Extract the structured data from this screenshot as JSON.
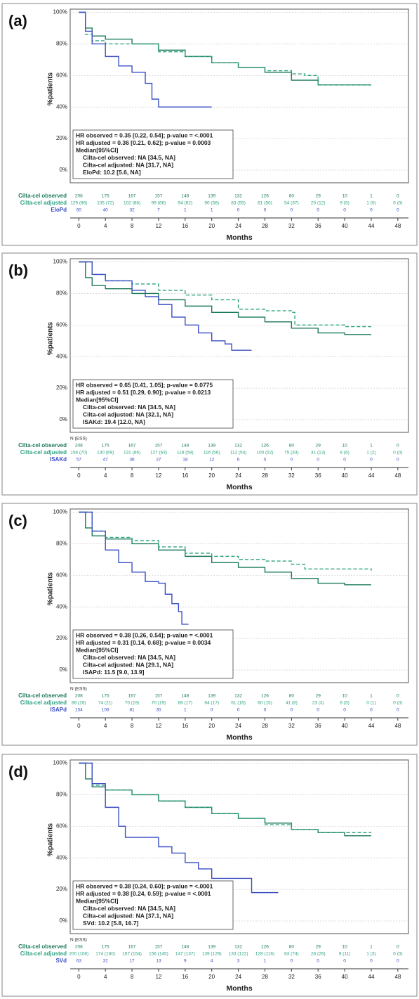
{
  "chart_data": [
    {
      "type": "line",
      "step": true,
      "grid": true,
      "panel_label": "(a)",
      "y_label": "%patients",
      "x_label": "Months",
      "xlim": [
        -1.3,
        49.6
      ],
      "ylim": [
        -8,
        102
      ],
      "xticks": [
        0,
        4,
        8,
        12,
        16,
        20,
        24,
        28,
        32,
        36,
        40,
        44,
        48
      ],
      "yticks": [
        {
          "value": 0,
          "label": "0%"
        },
        {
          "value": 20,
          "label": "20%"
        },
        {
          "value": 40,
          "label": "40%"
        },
        {
          "value": 60,
          "label": "60%"
        },
        {
          "value": 80,
          "label": "80%"
        },
        {
          "value": 100,
          "label": "100%"
        }
      ],
      "series": [
        {
          "name": "Cilta-cel observed",
          "color": "#1d7a5c",
          "dash": false,
          "x": [
            0,
            1,
            2,
            4,
            8,
            12,
            16,
            20,
            24,
            28,
            32,
            36,
            40,
            44
          ],
          "values": [
            100,
            90,
            85,
            83,
            80,
            76,
            72,
            68,
            65,
            62,
            57,
            54,
            54,
            54
          ],
          "at_risk": [
            "208",
            "175",
            "167",
            "157",
            "148",
            "139",
            "132",
            "126",
            "80",
            "29",
            "10",
            "1",
            "0"
          ]
        },
        {
          "name": "Cilta-cel adjusted",
          "color": "#2ea383",
          "dash": true,
          "x": [
            0,
            1,
            2,
            4,
            8,
            12,
            16,
            20,
            24,
            28,
            32,
            34,
            36,
            44
          ],
          "values": [
            100,
            86,
            82,
            80,
            80,
            75,
            72,
            68,
            65,
            63,
            61,
            60,
            54,
            54
          ],
          "at_risk": [
            "129 (86)",
            "105 (72)",
            "102 (68)",
            "99 (66)",
            "94 (62)",
            "90 (58)",
            "83 (55)",
            "81 (50)",
            "54 (37)",
            "20 (12)",
            "9 (5)",
            "1 (0)",
            "0 (0)"
          ]
        },
        {
          "name": "EloPd",
          "color": "#3b4fc4",
          "dash": false,
          "x": [
            0,
            1,
            2,
            4,
            6,
            8,
            10,
            11,
            12,
            20
          ],
          "values": [
            100,
            88,
            80,
            72,
            66,
            62,
            55,
            45,
            40,
            40
          ],
          "at_risk": [
            "60",
            "40",
            "32",
            "7",
            "1",
            "1",
            "0",
            "0",
            "0",
            "0",
            "0",
            "0",
            "0"
          ]
        }
      ],
      "annotations": [
        "HR observed = 0.35 [0.22, 0.54]; p-value = <.0001",
        "HR adjusted = 0.36 [0.21, 0.62]; p-value = 0.0003",
        "Median[95%CI]",
        "Cilta-cel observed: NA [34.5, NA]",
        "Cilta-cel adjusted: NA [31.7, NA]",
        "EloPd: 10.2 [5.6, NA]"
      ]
    },
    {
      "type": "line",
      "step": true,
      "grid": true,
      "panel_label": "(b)",
      "y_label": "%patients",
      "x_label": "Months",
      "risk_header": "N (ESS)",
      "xlim": [
        -1.3,
        49.6
      ],
      "ylim": [
        -8,
        102
      ],
      "xticks": [
        0,
        4,
        8,
        12,
        16,
        20,
        24,
        28,
        32,
        36,
        40,
        44,
        48
      ],
      "yticks": [
        {
          "value": 0,
          "label": "0%"
        },
        {
          "value": 20,
          "label": "20%"
        },
        {
          "value": 40,
          "label": "40%"
        },
        {
          "value": 60,
          "label": "60%"
        },
        {
          "value": 80,
          "label": "80%"
        },
        {
          "value": 100,
          "label": "100%"
        }
      ],
      "series": [
        {
          "name": "Cilta-cel observed",
          "color": "#1d7a5c",
          "dash": false,
          "x": [
            0,
            1,
            2,
            4,
            8,
            12,
            16,
            20,
            24,
            28,
            32,
            36,
            40,
            44
          ],
          "values": [
            100,
            90,
            85,
            83,
            80,
            76,
            72,
            68,
            65,
            62,
            58,
            55,
            54,
            54
          ],
          "at_risk": [
            "208",
            "175",
            "167",
            "157",
            "148",
            "139",
            "132",
            "126",
            "80",
            "29",
            "10",
            "1",
            "0"
          ]
        },
        {
          "name": "Cilta-cel adjusted",
          "color": "#2ea383",
          "dash": true,
          "x": [
            0,
            2,
            4,
            8,
            12,
            16,
            20,
            24,
            28,
            32,
            32.5,
            36,
            40,
            44
          ],
          "values": [
            100,
            92,
            88,
            86,
            82,
            79,
            76,
            70,
            69,
            68,
            60,
            60,
            59,
            59
          ],
          "at_risk": [
            "158 (70)",
            "130 (69)",
            "131 (66)",
            "127 (63)",
            "118 (59)",
            "116 (56)",
            "112 (54)",
            "100 (52)",
            "75 (33)",
            "31 (13)",
            "8 (6)",
            "1 (2)",
            "0 (0)"
          ]
        },
        {
          "name": "ISAKd",
          "color": "#3b4fc4",
          "dash": false,
          "x": [
            0,
            2,
            4,
            8,
            10,
            12,
            14,
            16,
            18,
            20,
            22,
            23,
            26
          ],
          "values": [
            100,
            92,
            88,
            82,
            78,
            73,
            65,
            60,
            55,
            50,
            48,
            44,
            44
          ],
          "at_risk": [
            "57",
            "47",
            "36",
            "27",
            "18",
            "12",
            "6",
            "0",
            "0",
            "0",
            "0",
            "0",
            "0"
          ]
        }
      ],
      "annotations": [
        "HR observed = 0.65 [0.41, 1.05]; p-value = 0.0775",
        "HR adjusted = 0.51 [0.29, 0.90]; p-value = 0.0213",
        "Median[95%CI]",
        "Cilta-cel observed: NA [34.5, NA]",
        "Cilta-cel adjusted: NA [32.1, NA]",
        "ISAKd: 19.4 [12.0, NA]"
      ]
    },
    {
      "type": "line",
      "step": true,
      "grid": true,
      "panel_label": "(c)",
      "y_label": "%patients",
      "x_label": "Months",
      "risk_header": "N (ESS)",
      "xlim": [
        -1.3,
        49.6
      ],
      "ylim": [
        -8,
        102
      ],
      "xticks": [
        0,
        4,
        8,
        12,
        16,
        20,
        24,
        28,
        32,
        36,
        40,
        44,
        48
      ],
      "yticks": [
        {
          "value": 0,
          "label": "0%"
        },
        {
          "value": 20,
          "label": "20%"
        },
        {
          "value": 40,
          "label": "40%"
        },
        {
          "value": 60,
          "label": "60%"
        },
        {
          "value": 80,
          "label": "80%"
        },
        {
          "value": 100,
          "label": "100%"
        }
      ],
      "series": [
        {
          "name": "Cilta-cel observed",
          "color": "#1d7a5c",
          "dash": false,
          "x": [
            0,
            1,
            2,
            4,
            8,
            12,
            16,
            20,
            24,
            28,
            32,
            36,
            40,
            44
          ],
          "values": [
            100,
            90,
            85,
            83,
            80,
            76,
            72,
            68,
            65,
            62,
            58,
            55,
            54,
            54
          ],
          "at_risk": [
            "208",
            "175",
            "167",
            "157",
            "148",
            "139",
            "132",
            "126",
            "80",
            "29",
            "10",
            "1",
            "0"
          ]
        },
        {
          "name": "Cilta-cel adjusted",
          "color": "#2ea383",
          "dash": true,
          "x": [
            0,
            2,
            4,
            8,
            12,
            16,
            20,
            24,
            28,
            32,
            34,
            40,
            44
          ],
          "values": [
            100,
            88,
            84,
            82,
            78,
            74,
            72,
            70,
            69,
            67,
            64,
            64,
            63
          ],
          "at_risk": [
            "88 (26)",
            "74 (21)",
            "70 (19)",
            "70 (19)",
            "66 (17)",
            "64 (17)",
            "61 (16)",
            "60 (15)",
            "41 (8)",
            "23 (3)",
            "6 (5)",
            "0 (1)",
            "0 (0)"
          ]
        },
        {
          "name": "ISAPd",
          "color": "#3b4fc4",
          "dash": false,
          "x": [
            0,
            2,
            4,
            6,
            8,
            10,
            12,
            13,
            14,
            15,
            15.5,
            16.5
          ],
          "values": [
            100,
            88,
            76,
            68,
            62,
            56,
            55,
            48,
            42,
            37,
            29,
            29
          ],
          "at_risk": [
            "154",
            "106",
            "81",
            "30",
            "1",
            "0",
            "0",
            "0",
            "0",
            "0",
            "0",
            "0",
            "0"
          ]
        }
      ],
      "annotations": [
        "HR observed = 0.38 [0.26, 0.54]; p-value = <.0001",
        "HR adjusted = 0.31 [0.14, 0.68]; p-value = 0.0034",
        "Median[95%CI]",
        "Cilta-cel observed: NA [34.5, NA]",
        "Cilta-cel adjusted: NA [29.1, NA]",
        "ISAPd: 11.5 [9.0, 13.9]"
      ]
    },
    {
      "type": "line",
      "step": true,
      "grid": true,
      "panel_label": "(d)",
      "y_label": "%patients",
      "x_label": "Months",
      "risk_header": "N (ESS)",
      "xlim": [
        -1.3,
        49.6
      ],
      "ylim": [
        -8,
        102
      ],
      "xticks": [
        0,
        4,
        8,
        12,
        16,
        20,
        24,
        28,
        32,
        36,
        40,
        44,
        48
      ],
      "yticks": [
        {
          "value": 0,
          "label": "0%"
        },
        {
          "value": 20,
          "label": "20%"
        },
        {
          "value": 40,
          "label": "40%"
        },
        {
          "value": 60,
          "label": "60%"
        },
        {
          "value": 80,
          "label": "80%"
        },
        {
          "value": 100,
          "label": "100%"
        }
      ],
      "series": [
        {
          "name": "Cilta-cel observed",
          "color": "#1d7a5c",
          "dash": false,
          "x": [
            0,
            1,
            2,
            4,
            8,
            12,
            16,
            20,
            24,
            28,
            32,
            36,
            40,
            44
          ],
          "values": [
            100,
            90,
            85,
            83,
            80,
            76,
            72,
            68,
            65,
            62,
            58,
            56,
            54,
            54
          ],
          "at_risk": [
            "208",
            "175",
            "167",
            "157",
            "148",
            "139",
            "132",
            "126",
            "80",
            "29",
            "10",
            "1",
            "0"
          ]
        },
        {
          "name": "Cilta-cel adjusted",
          "color": "#2ea383",
          "dash": true,
          "x": [
            0,
            2,
            4,
            8,
            12,
            16,
            20,
            24,
            28,
            32,
            36,
            44
          ],
          "values": [
            100,
            86,
            83,
            80,
            76,
            72,
            68,
            65,
            61,
            58,
            56,
            56
          ],
          "at_risk": [
            "200 (108)",
            "174 (160)",
            "167 (154)",
            "156 (145)",
            "147 (137)",
            "139 (129)",
            "133 (122)",
            "128 (116)",
            "83 (74)",
            "28 (26)",
            "9 (11)",
            "1 (3)",
            "0 (0)"
          ]
        },
        {
          "name": "SVd",
          "color": "#3b4fc4",
          "dash": false,
          "x": [
            0,
            2,
            4,
            6,
            7,
            10,
            12,
            14,
            16,
            18,
            20,
            24,
            26,
            30
          ],
          "values": [
            100,
            87,
            72,
            60,
            53,
            53,
            47,
            43,
            37,
            33,
            27,
            27,
            18,
            18
          ],
          "at_risk": [
            "63",
            "32",
            "17",
            "13",
            "9",
            "4",
            "3",
            "1",
            "0",
            "0",
            "0",
            "0",
            "0"
          ]
        }
      ],
      "annotations": [
        "HR observed = 0.38 [0.24, 0.60]; p-value = <.0001",
        "HR adjusted = 0.38 [0.24, 0.59]; p-value = <.0001",
        "Median[95%CI]",
        "Cilta-cel observed: NA [34.5, NA]",
        "Cilta-cel adjusted: NA [37.1, NA]",
        "SVd: 10.2 [5.8, 16.7]"
      ]
    }
  ]
}
